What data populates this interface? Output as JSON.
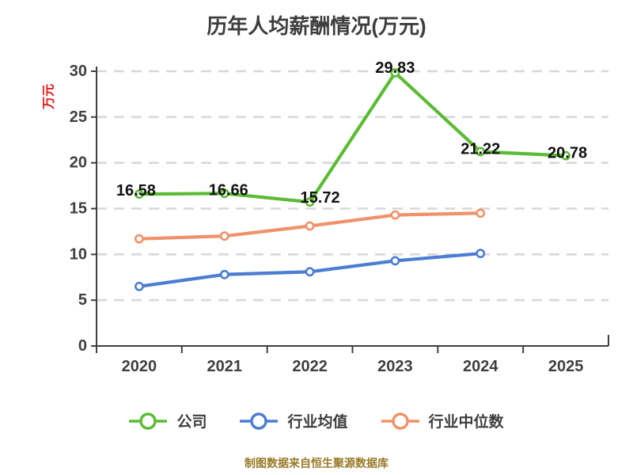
{
  "title": "历年人均薪酬情况(万元)",
  "footer": "制图数据来自恒生聚源数据库",
  "colors": {
    "title": "#3d3d3d",
    "axis": "#3f3f3f",
    "grid": "#d8d8d8",
    "data_label": "#111111",
    "y_unit_label": "#e21c1c",
    "footer": "#9a7a28",
    "marker_fill": "#ffffff"
  },
  "chart_data": {
    "type": "line",
    "title": "历年人均薪酬情况(万元)",
    "x_categories": [
      "2020",
      "2021",
      "2022",
      "2023",
      "2024",
      "2025"
    ],
    "y_unit": "万元",
    "ylim": [
      0,
      30
    ],
    "yticks": [
      0,
      5,
      10,
      15,
      20,
      25,
      30
    ],
    "grid": "horizontal-dashed",
    "legend_position": "bottom",
    "series": [
      {
        "name": "公司",
        "color": "#5cbb34",
        "values": [
          16.58,
          16.66,
          15.72,
          29.83,
          21.22,
          20.78
        ],
        "labels_visible": true
      },
      {
        "name": "行业均值",
        "color": "#4a7dd3",
        "values": [
          6.5,
          7.8,
          8.1,
          9.3,
          10.1,
          null
        ],
        "labels_visible": false
      },
      {
        "name": "行业中位数",
        "color": "#f09169",
        "values": [
          11.7,
          12.0,
          13.1,
          14.3,
          14.5,
          null
        ],
        "labels_visible": false
      }
    ]
  }
}
